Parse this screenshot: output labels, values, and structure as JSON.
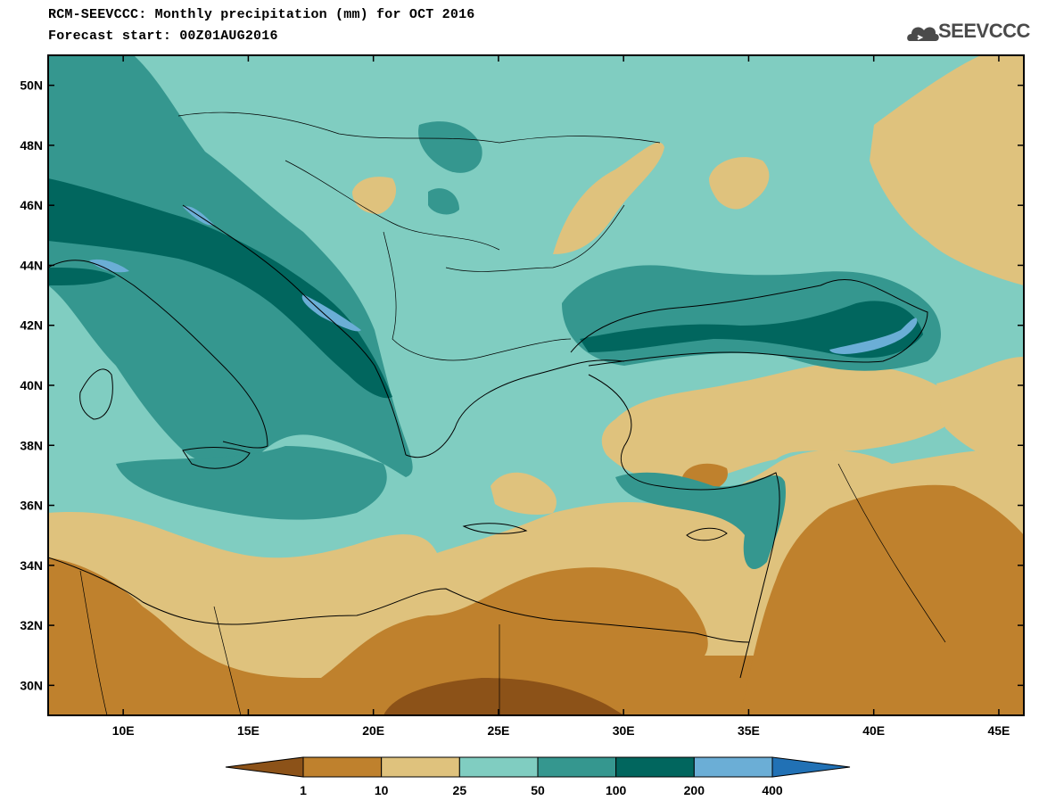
{
  "header": {
    "title": "RCM-SEEVCCC: Monthly precipitation (mm) for OCT 2016",
    "subtitle": "Forecast start: 00Z01AUG2016"
  },
  "logo": {
    "text": "SEEVCCC",
    "icon": "cloud-icon"
  },
  "map": {
    "lat_labels": [
      "50N",
      "48N",
      "46N",
      "44N",
      "42N",
      "40N",
      "38N",
      "36N",
      "34N",
      "32N",
      "30N"
    ],
    "lon_labels": [
      "10E",
      "15E",
      "20E",
      "25E",
      "30E",
      "35E",
      "40E",
      "45E"
    ],
    "lat_range": [
      29,
      51
    ],
    "lon_range": [
      7,
      46
    ]
  },
  "legend": {
    "labels": [
      "1",
      "10",
      "25",
      "50",
      "100",
      "200",
      "400"
    ],
    "colors": [
      "#8c5218",
      "#bf812d",
      "#dfc27d",
      "#80cdc1",
      "#35978f",
      "#01665e",
      "#6baed6",
      "#2171b5"
    ]
  }
}
